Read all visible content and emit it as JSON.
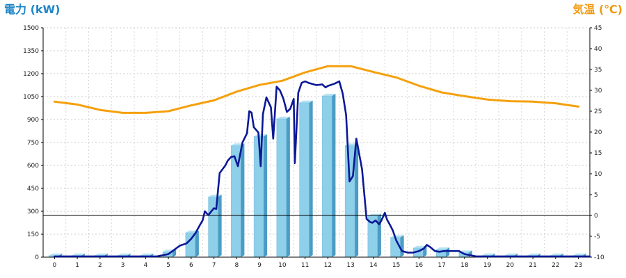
{
  "chart_data": {
    "type": "bar",
    "left_axis_title": "電力 (kW)",
    "right_axis_title": "気温 (℃)",
    "categories": [
      "0",
      "1",
      "2",
      "3",
      "4",
      "5",
      "6",
      "7",
      "8",
      "9",
      "10",
      "11",
      "12",
      "13",
      "14",
      "15",
      "16",
      "17",
      "18",
      "19",
      "20",
      "21",
      "22",
      "23"
    ],
    "y_left": {
      "range": [
        0,
        1500
      ],
      "ticks": [
        "0",
        "150",
        "300",
        "450",
        "600",
        "750",
        "900",
        "1050",
        "1200",
        "1350",
        "1500"
      ]
    },
    "y_right": {
      "range": [
        -10,
        45
      ],
      "ticks": [
        "-10",
        "-5",
        "0",
        "5",
        "10",
        "15",
        "20",
        "25",
        "30",
        "35",
        "40",
        "45"
      ]
    },
    "grid": true,
    "bars": {
      "axis": "left",
      "color": "#87ceeb",
      "values": [
        10,
        10,
        10,
        10,
        10,
        35,
        160,
        395,
        730,
        790,
        905,
        1010,
        1055,
        730,
        270,
        130,
        60,
        50,
        30,
        10,
        10,
        10,
        10,
        10
      ]
    },
    "temperature": {
      "axis": "right",
      "color": "#f5a00c",
      "x": [
        0,
        1,
        2,
        3,
        4,
        5,
        6,
        7,
        8,
        9,
        10,
        11,
        12,
        13,
        14,
        15,
        16,
        17,
        18,
        19,
        20,
        21,
        22,
        23
      ],
      "values": [
        27.3,
        26.6,
        25.3,
        24.6,
        24.6,
        25.0,
        26.4,
        27.6,
        29.7,
        31.3,
        32.3,
        34.3,
        35.8,
        35.8,
        34.4,
        33.1,
        31.1,
        29.5,
        28.6,
        27.8,
        27.4,
        27.3,
        26.9,
        26.1
      ]
    },
    "power": {
      "axis": "left",
      "color": "#0b1896",
      "x": [
        0,
        4.5,
        5,
        5.5,
        5.8,
        6,
        6.2,
        6.4,
        6.5,
        6.6,
        6.75,
        7,
        7.1,
        7.25,
        7.5,
        7.6,
        7.75,
        7.9,
        8.05,
        8.25,
        8.45,
        8.55,
        8.65,
        8.75,
        8.95,
        9.05,
        9.15,
        9.3,
        9.5,
        9.6,
        9.75,
        9.9,
        10.05,
        10.2,
        10.35,
        10.5,
        10.55,
        10.7,
        10.85,
        11,
        11.15,
        11.5,
        11.75,
        11.9,
        12,
        12.3,
        12.5,
        12.65,
        12.8,
        12.95,
        13.1,
        13.25,
        13.5,
        13.7,
        13.85,
        13.95,
        14.1,
        14.25,
        14.35,
        14.5,
        14.6,
        14.75,
        14.85,
        15,
        15.25,
        15.5,
        15.75,
        16,
        16.2,
        16.35,
        16.5,
        16.7,
        16.9,
        17.1,
        17.4,
        17.75,
        18,
        18.5,
        23.5
      ],
      "values": [
        5,
        5,
        20,
        75,
        90,
        120,
        160,
        215,
        240,
        300,
        275,
        320,
        315,
        550,
        600,
        630,
        655,
        660,
        595,
        750,
        810,
        955,
        945,
        850,
        815,
        595,
        935,
        1045,
        980,
        775,
        1115,
        1090,
        1035,
        950,
        970,
        1035,
        615,
        1075,
        1140,
        1150,
        1140,
        1125,
        1130,
        1110,
        1120,
        1135,
        1150,
        1070,
        930,
        495,
        530,
        775,
        575,
        250,
        230,
        225,
        240,
        215,
        240,
        290,
        245,
        205,
        175,
        110,
        40,
        30,
        30,
        40,
        55,
        80,
        65,
        40,
        35,
        40,
        40,
        40,
        20,
        5,
        5
      ]
    }
  }
}
